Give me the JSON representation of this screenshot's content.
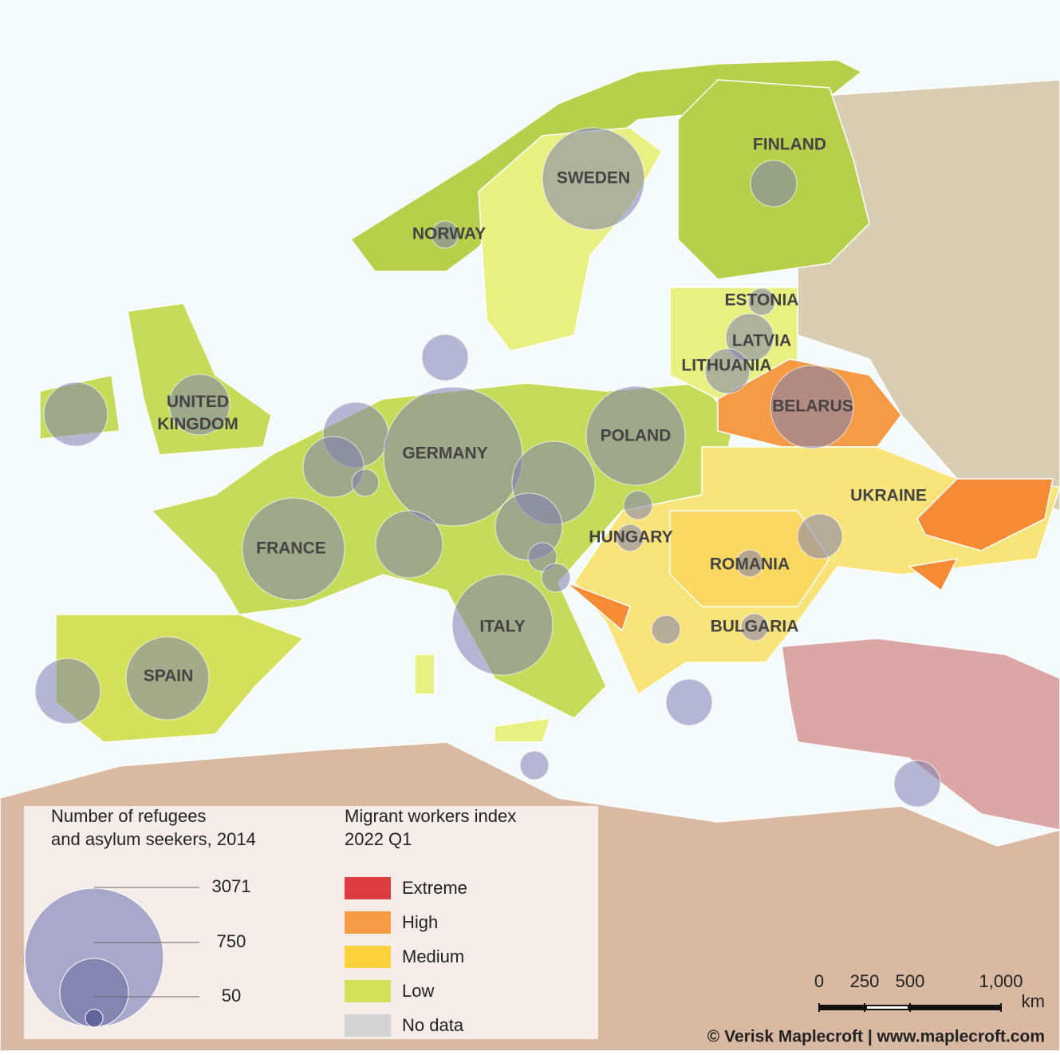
{
  "title_bubbles": "Number of refugees and asylum seekers, 2014",
  "title_index": "Migrant workers index 2022 Q1",
  "country_labels": [
    "SWEDEN",
    "FINLAND",
    "NORWAY",
    "ESTONIA",
    "LATVIA",
    "LITHUANIA",
    "BELARUS",
    "UNITED KINGDOM",
    "POLAND",
    "GERMANY",
    "UKRAINE",
    "HUNGARY",
    "FRANCE",
    "ROMANIA",
    "ITALY",
    "BULGARIA",
    "SPAIN"
  ],
  "bubbles": {
    "values": [
      1662,
      341,
      117,
      117,
      365,
      318,
      1097,
      341,
      649,
      586,
      682,
      586,
      117,
      3071,
      1560,
      1097,
      716,
      131,
      117,
      1662,
      716,
      131,
      131,
      1610,
      117,
      318,
      131,
      117,
      341,
      1097,
      682,
      131,
      341
    ]
  },
  "bubble_legend": [
    3071,
    750,
    50
  ],
  "index_legend": [
    {
      "name": "Extreme",
      "color": "#dc3b41"
    },
    {
      "name": "High",
      "color": "#f59a45"
    },
    {
      "name": "Medium",
      "color": "#fbd23c"
    },
    {
      "name": "Low",
      "color": "#d2e05a"
    },
    {
      "name": "No data",
      "color": "#d3d3d3"
    }
  ],
  "scale_bar": {
    "ticks": [
      0,
      250,
      500,
      {
        "value": 1000,
        "label": "1,000"
      }
    ],
    "unit": "km"
  },
  "credit": "© Verisk Maplecroft  | www.maplecroft.com"
}
